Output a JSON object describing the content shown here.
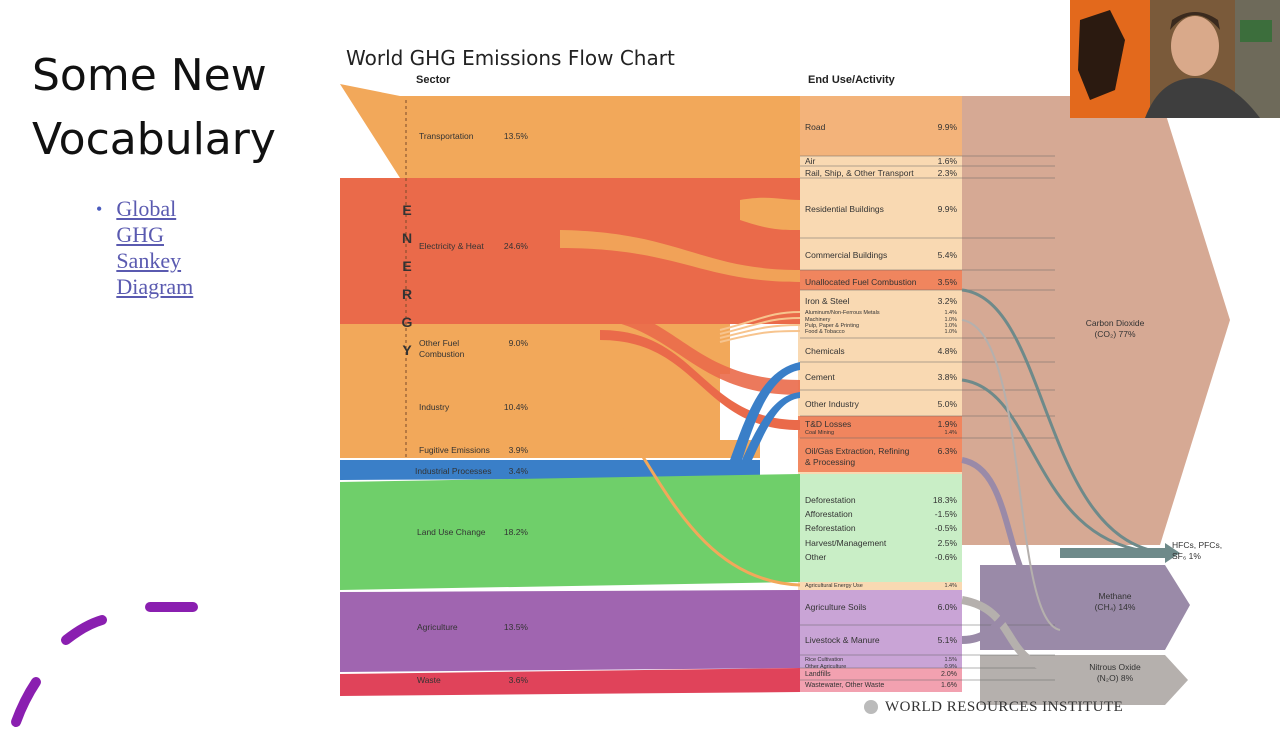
{
  "slide": {
    "title": "Some New\nVocabulary",
    "bullet_link": "Global\nGHG\nSankey\nDiagram",
    "bullet_symbol": "•"
  },
  "chart_data": {
    "type": "sankey",
    "title": "World GHG Emissions Flow Chart",
    "column_headers": [
      "Sector",
      "End Use/Activity"
    ],
    "energy_label": "E\nN\nE\nR\nG\nY",
    "sectors": [
      {
        "name": "Transportation",
        "value": "13.5%",
        "color": "#f2a85a"
      },
      {
        "name": "Electricity & Heat",
        "value": "24.6%",
        "color": "#ea6a4a"
      },
      {
        "name": "Other Fuel\nCombustion",
        "value": "9.0%",
        "color": "#f2a85a"
      },
      {
        "name": "Industry",
        "value": "10.4%",
        "color": "#f2a85a"
      },
      {
        "name": "Fugitive Emissions",
        "value": "3.9%",
        "color": "#f2a85a"
      },
      {
        "name": "Industrial Processes",
        "value": "3.4%",
        "color": "#3a7fc8"
      },
      {
        "name": "Land Use Change",
        "value": "18.2%",
        "color": "#6fcf6a"
      },
      {
        "name": "Agriculture",
        "value": "13.5%",
        "color": "#a065b0"
      },
      {
        "name": "Waste",
        "value": "3.6%",
        "color": "#e0435a"
      }
    ],
    "end_uses": [
      {
        "name": "Road",
        "value": "9.9%"
      },
      {
        "name": "Air",
        "value": "1.6%"
      },
      {
        "name": "Rail, Ship, & Other Transport",
        "value": "2.3%"
      },
      {
        "name": "Residential Buildings",
        "value": "9.9%"
      },
      {
        "name": "Commercial Buildings",
        "value": "5.4%"
      },
      {
        "name": "Unallocated Fuel Combustion",
        "value": "3.5%"
      },
      {
        "name": "Iron & Steel",
        "value": "3.2%"
      },
      {
        "name": "Aluminum/Non-Ferrous Metals",
        "value": "1.4%"
      },
      {
        "name": "Machinery",
        "value": "1.0%"
      },
      {
        "name": "Pulp, Paper & Printing",
        "value": "1.0%"
      },
      {
        "name": "Food & Tobacco",
        "value": "1.0%"
      },
      {
        "name": "Chemicals",
        "value": "4.8%"
      },
      {
        "name": "Cement",
        "value": "3.8%"
      },
      {
        "name": "Other Industry",
        "value": "5.0%"
      },
      {
        "name": "T&D Losses",
        "value": "1.9%"
      },
      {
        "name": "Coal Mining",
        "value": "1.4%"
      },
      {
        "name": "Oil/Gas Extraction, Refining\n& Processing",
        "value": "6.3%"
      },
      {
        "name": "Deforestation",
        "value": "18.3%"
      },
      {
        "name": "Afforestation",
        "value": "-1.5%"
      },
      {
        "name": "Reforestation",
        "value": "-0.5%"
      },
      {
        "name": "Harvest/Management",
        "value": "2.5%"
      },
      {
        "name": "Other",
        "value": "-0.6%"
      },
      {
        "name": "Agricultural Energy Use",
        "value": "1.4%"
      },
      {
        "name": "Agriculture Soils",
        "value": "6.0%"
      },
      {
        "name": "Livestock & Manure",
        "value": "5.1%"
      },
      {
        "name": "Rice Cultivation",
        "value": "1.5%"
      },
      {
        "name": "Other Agriculture",
        "value": "0.9%"
      },
      {
        "name": "Landfills",
        "value": "2.0%"
      },
      {
        "name": "Wastewater, Other Waste",
        "value": "1.6%"
      }
    ],
    "gases": [
      {
        "name": "Carbon Dioxide\n(CO₂) 77%",
        "color": "#d6a994"
      },
      {
        "name": "HFCs, PFCs,\nSF₆ 1%",
        "color": "#6e8a8a"
      },
      {
        "name": "Methane\n(CH₄) 14%",
        "color": "#9a8aa8"
      },
      {
        "name": "Nitrous Oxide\n(N₂O) 8%",
        "color": "#b5b0ad"
      }
    ],
    "source": "WORLD RESOURCES INSTITUTE"
  },
  "colors": {
    "orange": "#f2a85a",
    "red": "#ea6a4a",
    "blue": "#3a7fc8",
    "green": "#6fcf6a",
    "purple": "#a065b0",
    "pink": "#e0435a",
    "co2": "#d6a994",
    "accent_dash": "#8a1fb0"
  }
}
